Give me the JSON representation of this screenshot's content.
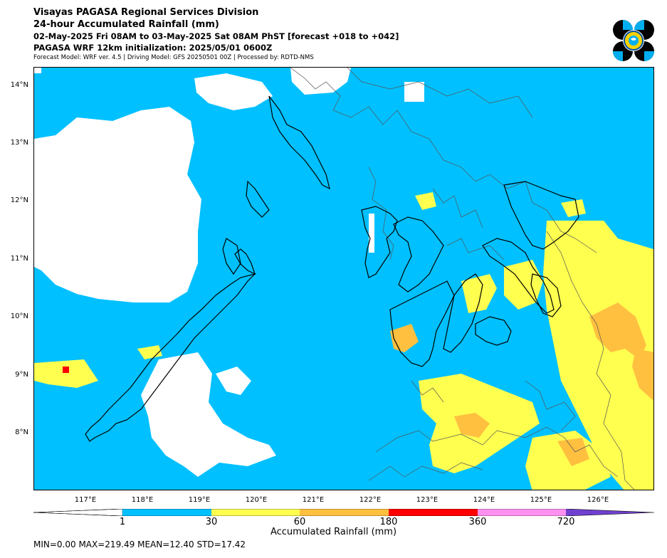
{
  "header": {
    "line1": "Visayas PAGASA Regional Services Division",
    "line2": "24-hour Accumulated Rainfall (mm)",
    "line3": "02-May-2025 Fri 08AM to 03-May-2025 Sat 08AM PhST [forecast +018 to +042]",
    "line4": "PAGASA WRF 12km initialization: 2025/05/01 0600Z",
    "line5": "Forecast Model: WRF ver. 4.5 | Driving Model: GFS 20250501 00Z | Processed by: RDTD-NMS"
  },
  "map": {
    "lat_labels": [
      "14°N",
      "13°N",
      "12°N",
      "11°N",
      "10°N",
      "9°N",
      "8°N"
    ],
    "lon_labels": [
      "117°E",
      "118°E",
      "119°E",
      "120°E",
      "121°E",
      "122°E",
      "123°E",
      "124°E",
      "125°E",
      "126°E"
    ],
    "colors": {
      "ocean_rain": "#00c0ff",
      "dry": "#ffffff",
      "r30": "#ffff50",
      "r60": "#ffc040",
      "r180": "#ff0000"
    }
  },
  "colorbar": {
    "ticks": [
      "1",
      "30",
      "60",
      "180",
      "360",
      "720"
    ],
    "label": "Accumulated Rainfall (mm)",
    "colors": [
      "#ffffff",
      "#00c0ff",
      "#ffff50",
      "#ffc040",
      "#ff0000",
      "#ff90f0",
      "#7040d0"
    ]
  },
  "stats": "MIN=0.00   MAX=219.49   MEAN=12.40   STD=17.42"
}
